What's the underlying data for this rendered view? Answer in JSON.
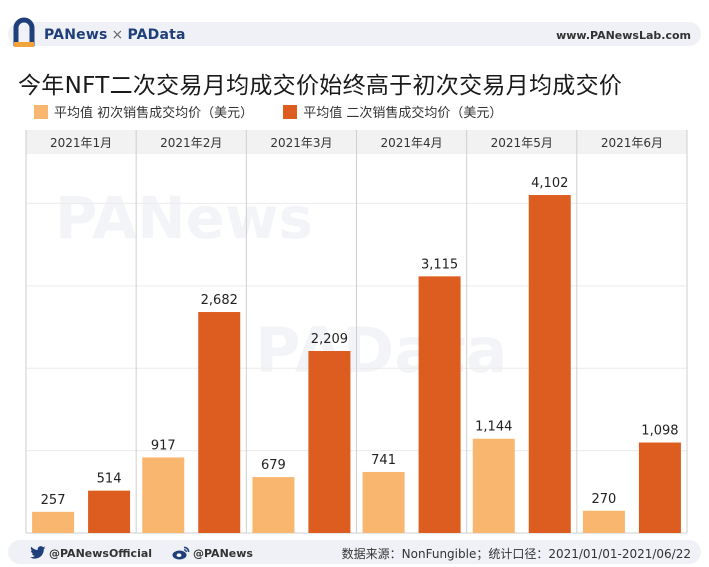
{
  "header": {
    "brand_pa": "PANews",
    "brand_sep": "×",
    "brand_pd": "PAData",
    "url": "www.PANewsLab.com"
  },
  "chart_data": {
    "type": "bar",
    "title": "今年NFT二次交易月均成交价始终高于初次交易月均成交价",
    "categories": [
      "2021年1月",
      "2021年2月",
      "2021年3月",
      "2021年4月",
      "2021年5月",
      "2021年6月"
    ],
    "series": [
      {
        "name": "平均值 初次销售成交均价（美元）",
        "values": [
          257,
          917,
          679,
          741,
          1144,
          270
        ],
        "labels": [
          "257",
          "917",
          "679",
          "741",
          "1,144",
          "270"
        ],
        "color": "#f9b66e"
      },
      {
        "name": "平均值 二次销售成交均价（美元）",
        "values": [
          514,
          2682,
          2209,
          3115,
          4102,
          1098
        ],
        "labels": [
          "514",
          "2,682",
          "2,209",
          "3,115",
          "4,102",
          "1,098"
        ],
        "color": "#dd5c1f"
      }
    ],
    "ylim": [
      0,
      4600
    ],
    "legend_position": "top-left",
    "grid": true
  },
  "watermarks": [
    "PANews",
    "PAData"
  ],
  "footer": {
    "twitter": "@PANewsOfficial",
    "weibo": "@PANews",
    "source": "数据来源：NonFungible；统计口径：2021/01/01-2021/06/22"
  },
  "colors": {
    "brand_blue": "#1f3f7a",
    "primary_bar": "#f9b66e",
    "secondary_bar": "#dd5c1f"
  }
}
